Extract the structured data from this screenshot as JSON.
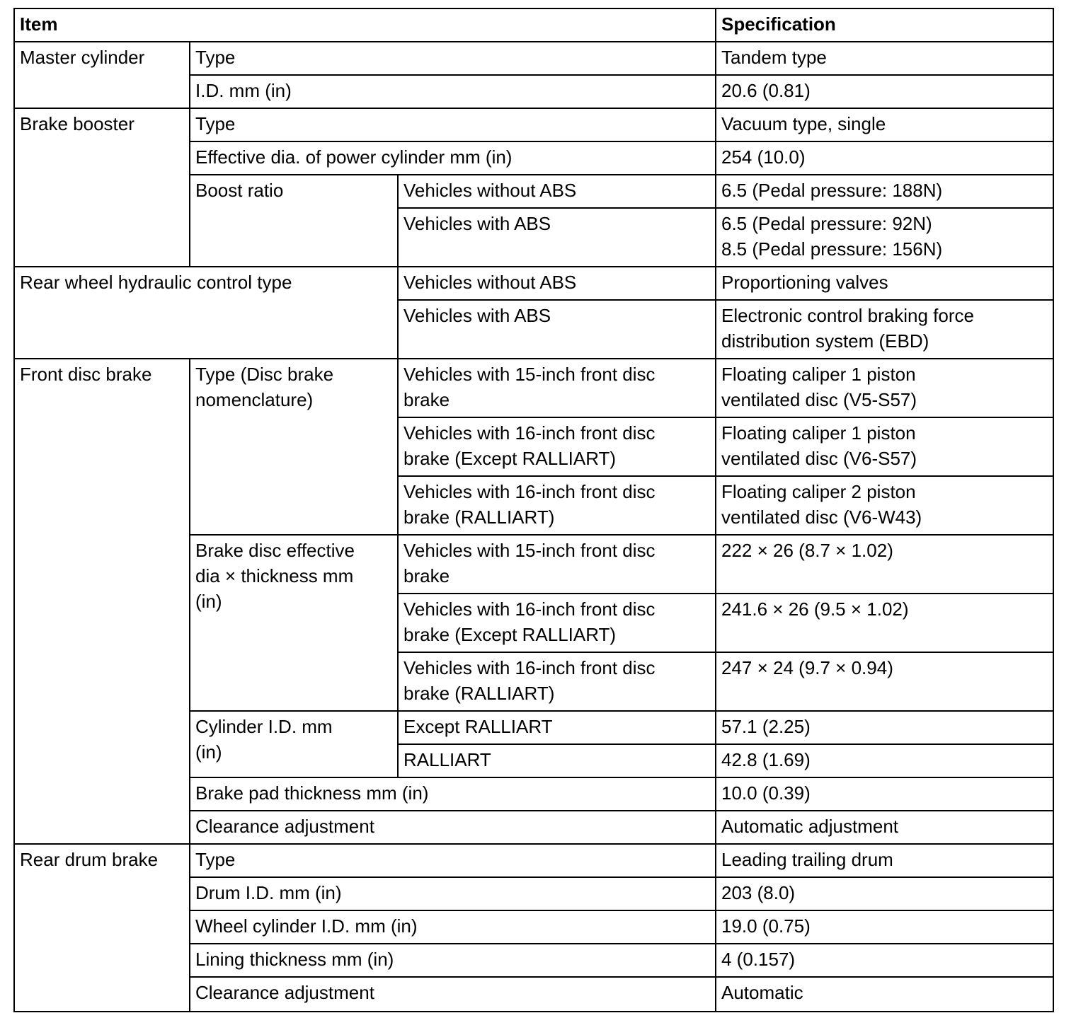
{
  "header": {
    "item": "Item",
    "spec": "Specification"
  },
  "rows": [
    {
      "a": "Master cylinder",
      "b": "Type",
      "d": "Tandem type"
    },
    {
      "b": "I.D. mm (in)",
      "d": "20.6 (0.81)"
    },
    {
      "a": "Brake booster",
      "b": "Type",
      "d": "Vacuum type, single"
    },
    {
      "b": "Effective dia. of power cylinder mm (in)",
      "d": "254 (10.0)"
    },
    {
      "b": "Boost ratio",
      "c": "Vehicles without ABS",
      "d": "6.5 (Pedal pressure: 188N)"
    },
    {
      "c": "Vehicles with ABS",
      "d": "6.5 (Pedal pressure: 92N)\n8.5 (Pedal pressure: 156N)"
    },
    {
      "a": "Rear wheel hydraulic control type",
      "c": "Vehicles without ABS",
      "d": "Proportioning valves"
    },
    {
      "c": "Vehicles with ABS",
      "d": "Electronic control braking force\ndistribution system (EBD)"
    },
    {
      "a": "Front disc brake",
      "b": "Type (Disc brake\nnomenclature)",
      "c": "Vehicles with 15-inch front disc\nbrake",
      "d": "Floating caliper 1 piston\nventilated disc (V5-S57)"
    },
    {
      "c": "Vehicles with 16-inch front disc\nbrake (Except RALLIART)",
      "d": "Floating caliper 1 piston\nventilated disc (V6-S57)"
    },
    {
      "c": "Vehicles with 16-inch front disc\nbrake (RALLIART)",
      "d": "Floating caliper 2 piston\nventilated disc (V6-W43)"
    },
    {
      "b": "Brake disc effective\ndia × thickness mm\n(in)",
      "c": "Vehicles with 15-inch front disc\nbrake",
      "d": "222 × 26 (8.7 × 1.02)"
    },
    {
      "c": "Vehicles with 16-inch front disc\nbrake (Except RALLIART)",
      "d": "241.6 × 26 (9.5 × 1.02)"
    },
    {
      "c": "Vehicles with 16-inch front disc\nbrake (RALLIART)",
      "d": "247 × 24 (9.7 × 0.94)"
    },
    {
      "b": "Cylinder I.D. mm\n(in)",
      "c": "Except RALLIART",
      "d": "57.1 (2.25)"
    },
    {
      "c": "RALLIART",
      "d": "42.8 (1.69)"
    },
    {
      "b": "Brake pad thickness mm (in)",
      "d": "10.0 (0.39)"
    },
    {
      "b": "Clearance adjustment",
      "d": "Automatic adjustment"
    },
    {
      "a": "Rear drum brake",
      "b": "Type",
      "d": "Leading trailing drum"
    },
    {
      "b": "Drum I.D. mm (in)",
      "d": "203 (8.0)"
    },
    {
      "b": "Wheel cylinder I.D. mm (in)",
      "d": "19.0 (0.75)"
    },
    {
      "b": "Lining thickness mm (in)",
      "d": "4 (0.157)"
    },
    {
      "b": "Clearance adjustment",
      "d": "Automatic"
    }
  ]
}
